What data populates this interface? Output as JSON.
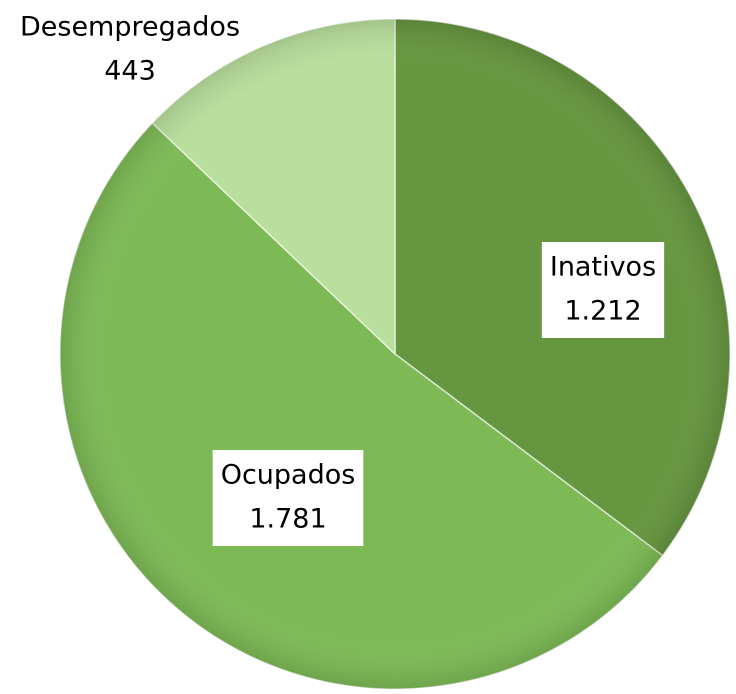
{
  "chart_data": {
    "type": "pie",
    "categories": [
      "Inativos",
      "Ocupados",
      "Desempregados"
    ],
    "values": [
      1212,
      1781,
      443
    ],
    "value_labels": [
      "1.212",
      "1.781",
      "443"
    ],
    "colors": [
      "#66963f",
      "#7dba55",
      "#b9df9c"
    ]
  }
}
